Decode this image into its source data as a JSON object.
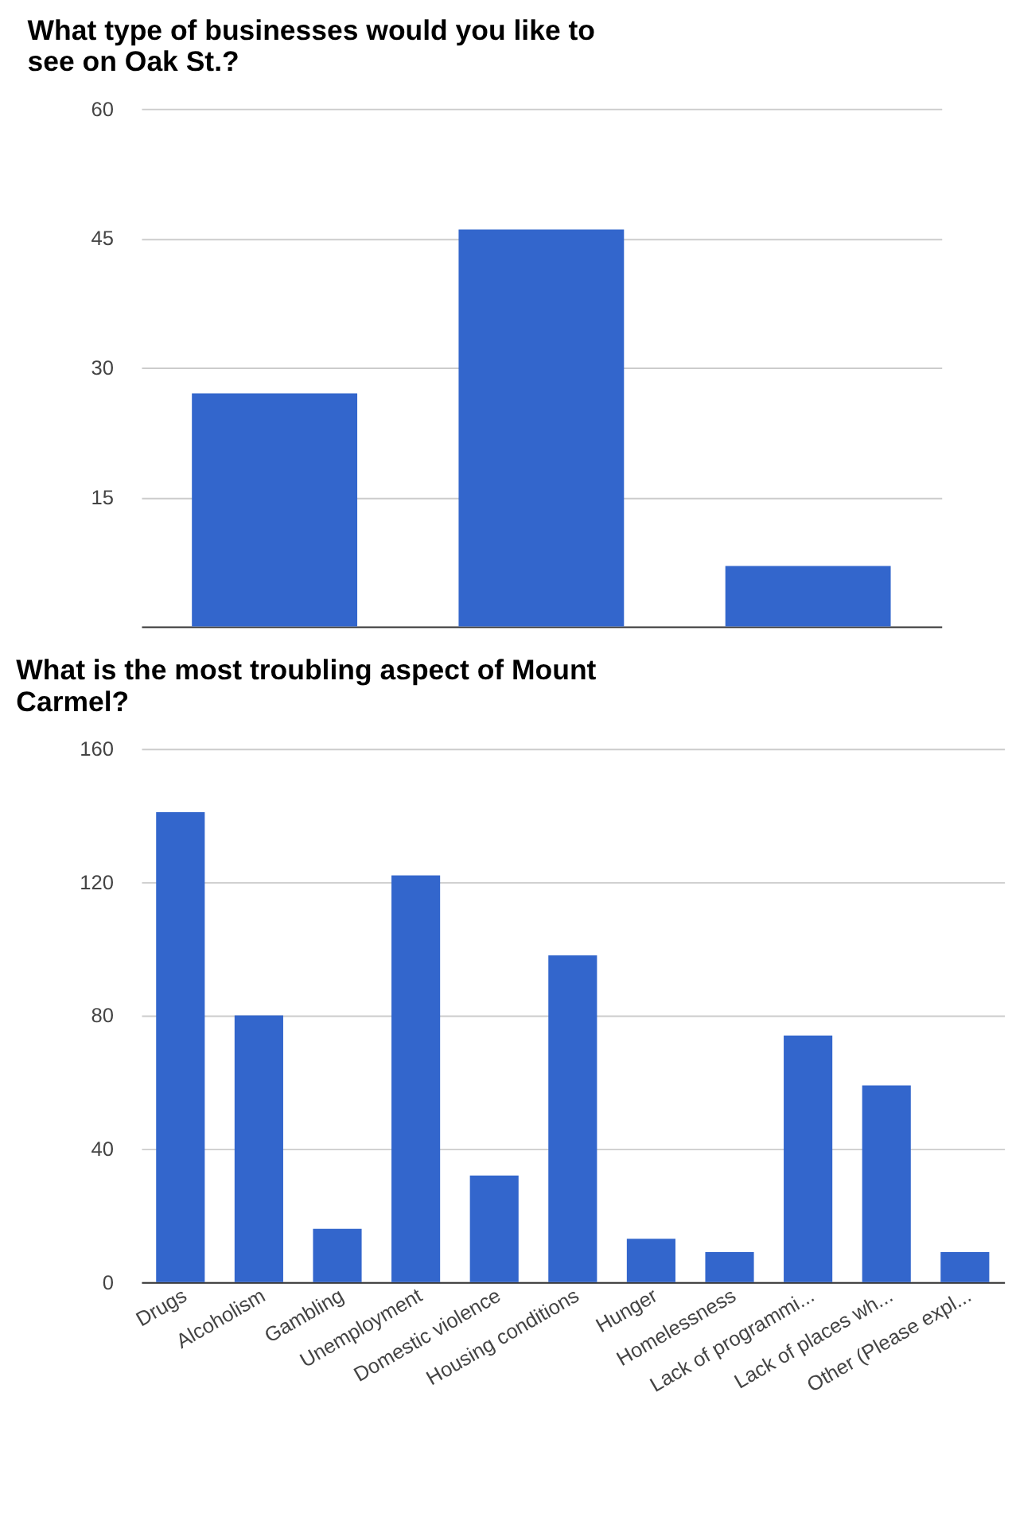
{
  "chart_data": [
    {
      "type": "bar",
      "title": "What type of businesses would you like to see on Oak St.?",
      "categories": [
        null,
        null,
        null
      ],
      "values": [
        27,
        46,
        7
      ],
      "color": "#3366cc",
      "ylim": [
        0,
        60
      ],
      "yticks": [
        15,
        30,
        45,
        60
      ],
      "grid": "y",
      "tick_labels": "y"
    },
    {
      "type": "bar",
      "title": "What is the most troubling aspect of Mount Carmel?",
      "categories": [
        "Drugs",
        "Alcoholism",
        "Gambling",
        "Unemployment",
        "Domestic violence",
        "Housing conditions",
        "Hunger",
        "Homelessness",
        "Lack of programmi...",
        "Lack of places wh...",
        "Other (Please expl..."
      ],
      "values": [
        141,
        80,
        16,
        122,
        32,
        98,
        13,
        9,
        74,
        59,
        9
      ],
      "color": "#3366cc",
      "ylim": [
        0,
        160
      ],
      "yticks": [
        0,
        40,
        80,
        120,
        160
      ],
      "grid": "y"
    }
  ]
}
